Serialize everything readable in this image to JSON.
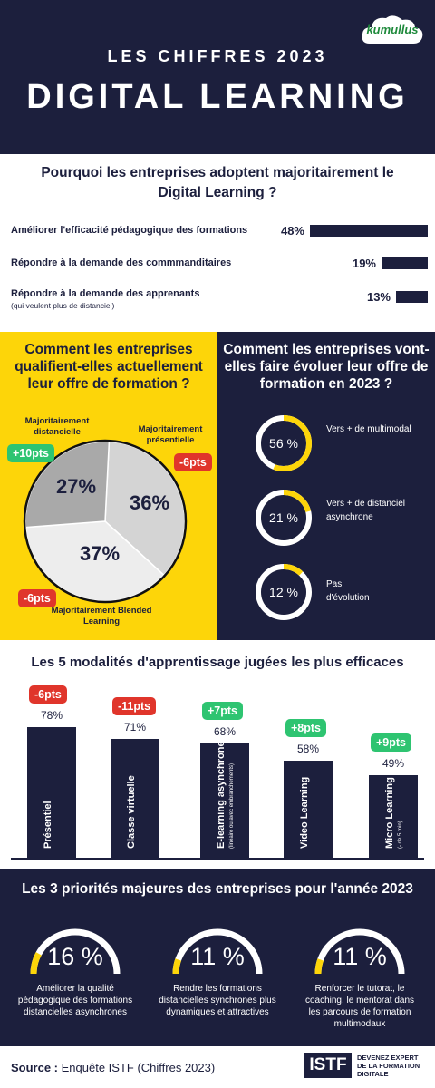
{
  "header": {
    "logo_text": "kumullus",
    "subtitle": "LES CHIFFRES 2023",
    "title": "DIGITAL LEARNING"
  },
  "why": {
    "title": "Pourquoi les entreprises adoptent majoritairement le Digital Learning ?",
    "rows": [
      {
        "label": "Améliorer l'efficacité pédagogique des formations",
        "note": "",
        "percent": "48%",
        "value": 48
      },
      {
        "label": "Répondre à la demande des commmanditaires",
        "note": "",
        "percent": "19%",
        "value": 19
      },
      {
        "label": "Répondre à la demande des apprenants",
        "note": "(qui veulent plus de distanciel)",
        "percent": "13%",
        "value": 13
      }
    ]
  },
  "current": {
    "title": "Comment les entreprises qualifient-elles actuellement leur offre de formation ?",
    "slices": [
      {
        "label": "Majoritairement présentielle",
        "percent": "36%",
        "value": 36,
        "change": "-6pts",
        "change_color": "#e0352b",
        "color": "#d4d4d4"
      },
      {
        "label": "Majoritairement Blended Learning",
        "percent": "37%",
        "value": 37,
        "change": "-6pts",
        "change_color": "#e0352b",
        "color": "#ededed"
      },
      {
        "label": "Majoritairement distancielle",
        "percent": "27%",
        "value": 27,
        "change": "+10pts",
        "change_color": "#2ec471",
        "color": "#a9a9a9"
      }
    ]
  },
  "evolution": {
    "title": "Comment les entreprises vont-elles faire évoluer leur offre de formation en 2023 ?",
    "items": [
      {
        "value": 56,
        "display": "56 %",
        "label": "Vers + de multimodal"
      },
      {
        "value": 21,
        "display": "21 %",
        "label": "Vers + de distanciel asynchrone"
      },
      {
        "value": 12,
        "display": "12 %",
        "label": "Pas d'évolution"
      }
    ]
  },
  "modalities": {
    "title": "Les 5 modalités d'apprentissage jugées les plus efficaces",
    "items": [
      {
        "name": "Présentiel",
        "sub": "",
        "percent": "78%",
        "value": 78,
        "change": "-6pts",
        "change_color": "#e0352b"
      },
      {
        "name": "Classe virtuelle",
        "sub": "",
        "percent": "71%",
        "value": 71,
        "change": "-11pts",
        "change_color": "#e0352b"
      },
      {
        "name": "E-learning asynchrone",
        "sub": "(linéaire ou avec embranchements)",
        "percent": "68%",
        "value": 68,
        "change": "+7pts",
        "change_color": "#2ec471"
      },
      {
        "name": "Video Learning",
        "sub": "",
        "percent": "58%",
        "value": 58,
        "change": "+8pts",
        "change_color": "#2ec471"
      },
      {
        "name": "Micro Learning",
        "sub": "(- de 5 min)",
        "percent": "49%",
        "value": 49,
        "change": "+9pts",
        "change_color": "#2ec471"
      }
    ]
  },
  "priorities": {
    "title": "Les 3 priorités majeures des entreprises pour l'année 2023",
    "items": [
      {
        "value": 16,
        "display": "16 %",
        "label": "Améliorer la qualité pédagogique des formations distancielles asynchrones"
      },
      {
        "value": 11,
        "display": "11 %",
        "label": "Rendre les formations distancielles synchrones plus dynamiques et attractives"
      },
      {
        "value": 11,
        "display": "11 %",
        "label": "Renforcer le tutorat, le coaching, le mentorat dans les parcours de formation multimodaux"
      }
    ]
  },
  "footer": {
    "source_label": "Source :",
    "source_text": "Enquête ISTF (Chiffres 2023)",
    "istf_logo": "ISTF",
    "istf_tagline": "DEVENEZ EXPERT DE LA FORMATION DIGITALE"
  },
  "colors": {
    "navy": "#1c1f3d",
    "yellow": "#fdd509",
    "green": "#2ec471",
    "red": "#e0352b"
  }
}
